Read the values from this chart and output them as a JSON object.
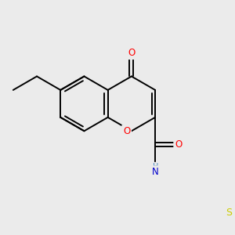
{
  "background_color": "#ebebeb",
  "bond_color": "#000000",
  "atom_colors": {
    "O": "#ff0000",
    "N": "#0000cc",
    "S": "#cccc00",
    "H": "#4488bb"
  },
  "lw": 1.4,
  "figsize": [
    3.0,
    3.0
  ],
  "dpi": 100,
  "xlim": [
    -3.0,
    3.5
  ],
  "ylim": [
    -2.5,
    2.5
  ],
  "label_fontsize": 8.5
}
